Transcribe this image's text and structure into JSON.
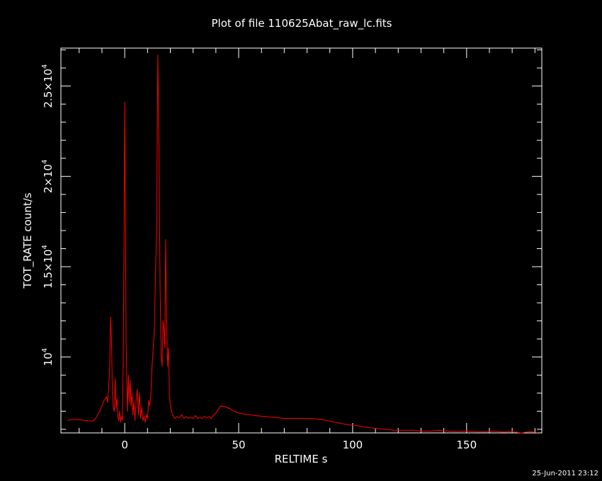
{
  "chart_data": {
    "type": "line",
    "title": "Plot of file 110625Abat_raw_lc.fits",
    "xlabel": "RELTIME   s",
    "ylabel": "TOT_RATE   count/s",
    "xlim": [
      -28,
      183
    ],
    "ylim": [
      5800,
      27100
    ],
    "grid": false,
    "x_ticks": [
      0,
      50,
      100,
      150
    ],
    "x_tick_labels": [
      "0",
      "50",
      "100",
      "150"
    ],
    "y_ticks": [
      {
        "value": 10000,
        "mant": "10",
        "exp": "4"
      },
      {
        "value": 15000,
        "mant": "1.5×10",
        "exp": "4"
      },
      {
        "value": 20000,
        "mant": "2×10",
        "exp": "4"
      },
      {
        "value": 25000,
        "mant": "2.5×10",
        "exp": "4"
      }
    ],
    "series": [
      {
        "color": "#ff0000",
        "x": [
          -25,
          -22,
          -18,
          -14,
          -13,
          -11,
          -10,
          -9,
          -8,
          -7.5,
          -7,
          -6.6,
          -6.2,
          -5.8,
          -5.4,
          -5,
          -4.6,
          -4.2,
          -3.8,
          -3.4,
          -3,
          -2.6,
          -2.2,
          -1.8,
          -1.4,
          -1,
          -0.7,
          -0.3,
          0,
          0.3,
          0.6,
          0.9,
          1.2,
          1.6,
          2,
          2.4,
          2.8,
          3.2,
          3.6,
          4,
          4.5,
          5,
          5.5,
          6,
          6.5,
          7,
          7.5,
          8,
          8.5,
          9,
          9.5,
          10,
          10.5,
          11,
          11.5,
          12,
          12.5,
          13,
          13.5,
          14,
          14.5,
          15,
          15.5,
          16,
          16.4,
          16.8,
          17.2,
          17.6,
          18,
          18.4,
          18.8,
          19.2,
          19.6,
          20,
          20.5,
          21,
          21.5,
          22,
          23,
          24,
          25,
          26,
          27,
          28,
          29,
          30,
          31,
          32,
          33,
          34,
          35,
          36,
          37,
          38,
          39,
          40,
          41,
          42,
          44,
          46,
          48,
          50,
          52,
          55,
          58,
          62,
          66,
          70,
          74,
          78,
          82,
          86,
          90,
          94,
          98,
          102,
          106,
          110,
          114,
          118,
          122,
          126,
          130,
          134,
          138,
          142,
          146,
          150,
          154,
          158,
          162,
          166,
          170,
          174,
          178,
          181
        ],
        "y": [
          6500,
          6550,
          6500,
          6450,
          6550,
          7000,
          7300,
          7600,
          7800,
          7500,
          8500,
          9500,
          12200,
          11000,
          8000,
          7200,
          7000,
          8800,
          7200,
          7700,
          6700,
          6500,
          7000,
          6400,
          6700,
          6500,
          9500,
          16000,
          24100,
          18000,
          11000,
          8800,
          7000,
          9000,
          7500,
          8700,
          7300,
          8000,
          6800,
          7500,
          6500,
          7600,
          8200,
          6800,
          8000,
          6600,
          7200,
          6500,
          6700,
          6400,
          6800,
          6600,
          7600,
          7300,
          8000,
          9500,
          10500,
          11500,
          14500,
          17000,
          26700,
          22000,
          14000,
          10000,
          9500,
          12000,
          11500,
          10500,
          16500,
          12000,
          9500,
          10500,
          8000,
          7300,
          7000,
          6800,
          6700,
          6600,
          6700,
          6650,
          6800,
          6600,
          6700,
          6600,
          6650,
          6600,
          6750,
          6600,
          6650,
          6600,
          6700,
          6650,
          6700,
          6600,
          6800,
          6900,
          7100,
          7300,
          7250,
          7150,
          7000,
          6900,
          6850,
          6800,
          6750,
          6700,
          6650,
          6600,
          6600,
          6600,
          6600,
          6550,
          6450,
          6350,
          6250,
          6200,
          6100,
          6050,
          6000,
          5950,
          5950,
          5950,
          5900,
          5900,
          5950,
          5900,
          5880,
          5900,
          5880,
          5860,
          5900,
          5850,
          5870,
          5800,
          5880,
          5820
        ]
      }
    ]
  },
  "footer": {
    "timestamp": "25-Jun-2011 23:12"
  }
}
